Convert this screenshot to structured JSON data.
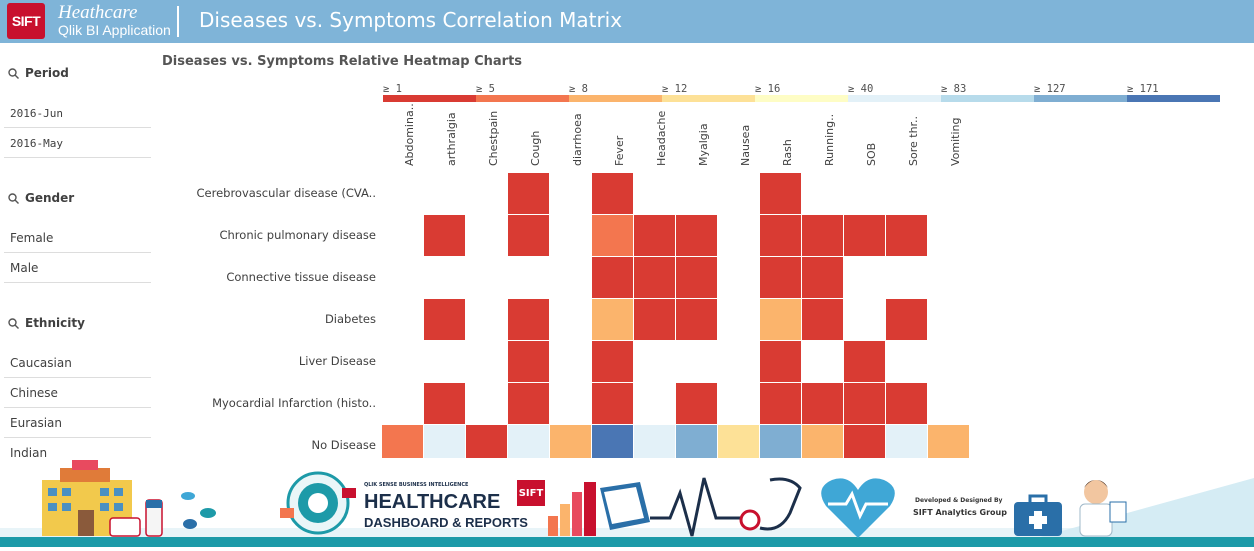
{
  "header": {
    "logo_text": "SIFT",
    "brand_line1": "Heathcare",
    "brand_line2": "Qlik BI Application",
    "title": "Diseases vs. Symptoms Correlation Matrix"
  },
  "sidebar": {
    "sections": [
      {
        "title": "Period",
        "items": [
          "2016-Jun",
          "2016-May"
        ]
      },
      {
        "title": "Gender",
        "items": [
          "Female",
          "Male"
        ]
      },
      {
        "title": "Ethnicity",
        "items": [
          "Caucasian",
          "Chinese",
          "Eurasian",
          "Indian"
        ]
      }
    ]
  },
  "chart_title": "Diseases vs. Symptoms Relative Heatmap Charts",
  "legend": [
    {
      "label": "≥ 1",
      "color": "#d93b33"
    },
    {
      "label": "≥ 5",
      "color": "#f3764f"
    },
    {
      "label": "≥ 8",
      "color": "#fbb46c"
    },
    {
      "label": "≥ 12",
      "color": "#fde197"
    },
    {
      "label": "≥ 16",
      "color": "#fefdc5"
    },
    {
      "label": "≥ 40",
      "color": "#e3f1f8"
    },
    {
      "label": "≥ 83",
      "color": "#b7dbeb"
    },
    {
      "label": "≥ 127",
      "color": "#7faed2"
    },
    {
      "label": "≥ 171",
      "color": "#4a76b4"
    }
  ],
  "chart_data": {
    "type": "heatmap",
    "title": "Diseases vs. Symptoms Relative Heatmap Charts",
    "columns": [
      "Abdomina..",
      "arthralgia",
      "Chestpain",
      "Cough",
      "diarrhoea",
      "Fever",
      "Headache",
      "Myalgia",
      "Nausea",
      "Rash",
      "Running..",
      "SOB",
      "Sore thr..",
      "Vomiting"
    ],
    "rows": [
      "Cerebrovascular disease (CVA..",
      "Chronic pulmonary disease",
      "Connective tissue disease",
      "Diabetes",
      "Liver Disease",
      "Myocardial Infarction (histo..",
      "No Disease"
    ],
    "bins": [
      "≥ 1",
      "≥ 5",
      "≥ 8",
      "≥ 12",
      "≥ 16",
      "≥ 40",
      "≥ 83",
      "≥ 127",
      "≥ 171"
    ],
    "cells": [
      [
        null,
        null,
        null,
        0,
        null,
        0,
        null,
        null,
        null,
        0,
        null,
        null,
        null,
        null
      ],
      [
        null,
        0,
        null,
        0,
        null,
        1,
        0,
        0,
        null,
        0,
        0,
        0,
        0,
        null
      ],
      [
        null,
        null,
        null,
        null,
        null,
        0,
        0,
        0,
        null,
        0,
        0,
        null,
        null,
        null
      ],
      [
        null,
        0,
        null,
        0,
        null,
        2,
        0,
        0,
        null,
        2,
        0,
        null,
        0,
        null
      ],
      [
        null,
        null,
        null,
        0,
        null,
        0,
        null,
        null,
        null,
        0,
        null,
        0,
        null,
        null
      ],
      [
        null,
        0,
        null,
        0,
        null,
        0,
        null,
        0,
        null,
        0,
        0,
        0,
        0,
        null
      ],
      [
        1,
        5,
        0,
        5,
        2,
        8,
        5,
        7,
        3,
        7,
        2,
        0,
        5,
        2
      ]
    ]
  },
  "banner": {
    "small_caption": "QLIK SENSE BUSINESS INTELLIGENCE",
    "title": "HEALTHCARE",
    "subtitle": "DASHBOARD & REPORTS",
    "logo_text": "SIFT",
    "dev_line1": "Developed & Designed By",
    "dev_line2": "SIFT Analytics Group"
  }
}
